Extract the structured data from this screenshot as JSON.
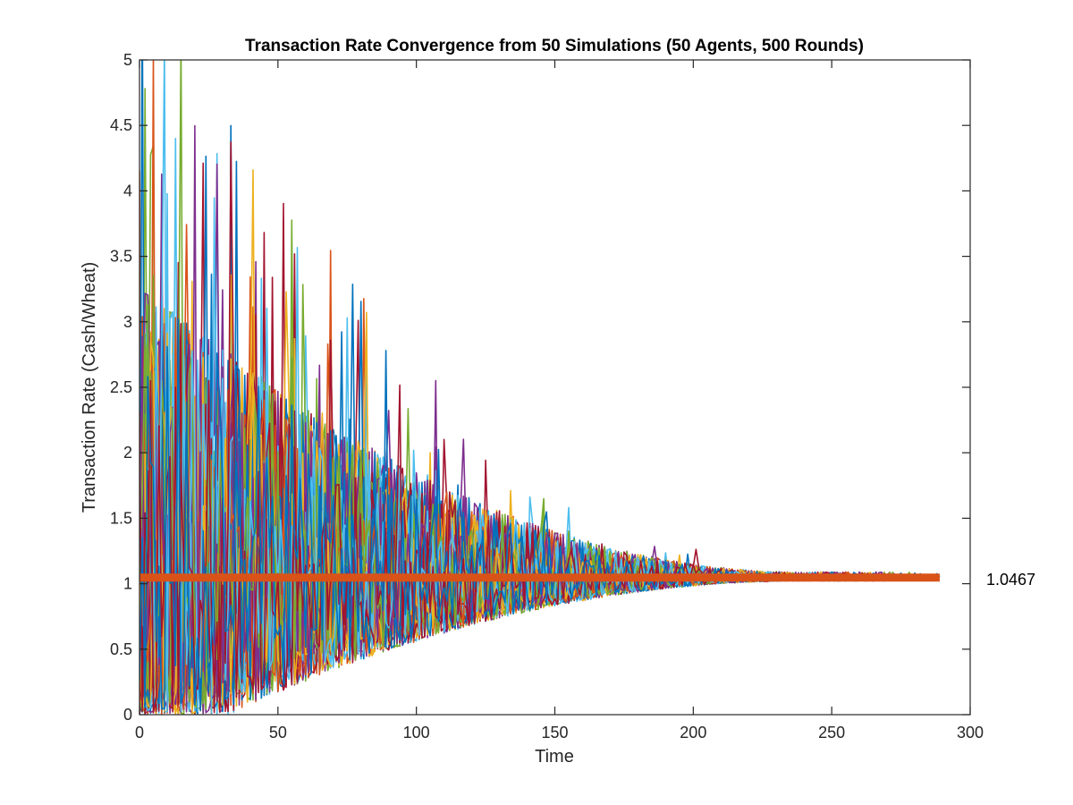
{
  "chart_data": {
    "type": "line",
    "title": "Transaction Rate Convergence from 50 Simulations (50 Agents, 500 Rounds)",
    "xlabel": "Time",
    "ylabel": "Transaction Rate (Cash/Wheat)",
    "xlim": [
      0,
      300
    ],
    "ylim": [
      0,
      5
    ],
    "x_ticks": [
      "0",
      "50",
      "100",
      "150",
      "200",
      "250",
      "300"
    ],
    "y_ticks": [
      "0",
      "0.5",
      "1",
      "1.5",
      "2",
      "2.5",
      "3",
      "3.5",
      "4",
      "4.5",
      "5"
    ],
    "series_colors": [
      "#0072BD",
      "#D95319",
      "#EDB120",
      "#7E2F8E",
      "#77AC30",
      "#4DBEEE",
      "#A2142F"
    ],
    "simulation_count": 50,
    "series_note": "50 noisy simulation traces converging toward the mean value; high variance early (clipped at 5), narrowing to about 1 by time 290",
    "approx_series_endpoints_time": [
      200,
      290
    ],
    "mean_line": {
      "value": 1.0467,
      "label": "1.0467",
      "x_range": [
        0,
        289
      ],
      "color": "#D95319"
    },
    "grid": false,
    "legend": "none"
  }
}
